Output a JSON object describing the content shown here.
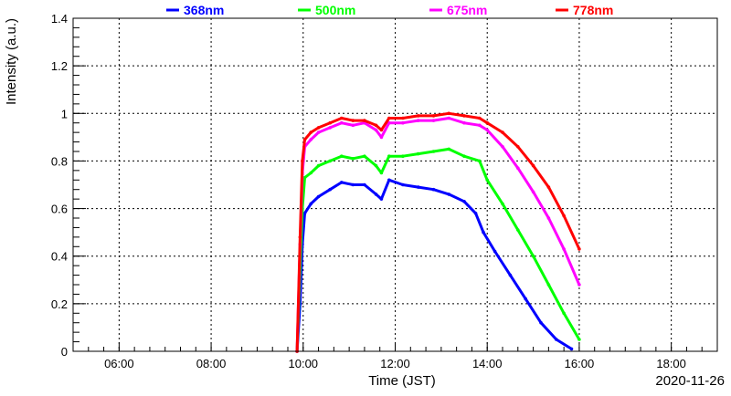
{
  "chart_data": {
    "type": "scatter",
    "title": "",
    "xlabel": "Time (JST)",
    "ylabel": "Intensity (a.u.)",
    "date_label": "2020-11-26",
    "xlim": [
      "05:00",
      "19:00"
    ],
    "ylim": [
      0,
      1.4
    ],
    "grid": true,
    "legend_position": "top",
    "x_ticks": [
      "06:00",
      "08:00",
      "10:00",
      "12:00",
      "14:00",
      "16:00",
      "18:00"
    ],
    "y_ticks": [
      "0",
      "0.2",
      "0.4",
      "0.6",
      "0.8",
      "1",
      "1.2",
      "1.4"
    ],
    "series": [
      {
        "name": "368nm",
        "color": "#0000ff",
        "points": [
          [
            "09:52",
            0.0
          ],
          [
            "09:56",
            0.2
          ],
          [
            "09:59",
            0.45
          ],
          [
            "10:02",
            0.58
          ],
          [
            "10:10",
            0.62
          ],
          [
            "10:20",
            0.65
          ],
          [
            "10:35",
            0.68
          ],
          [
            "10:50",
            0.71
          ],
          [
            "11:05",
            0.7
          ],
          [
            "11:20",
            0.7
          ],
          [
            "11:35",
            0.66
          ],
          [
            "11:42",
            0.64
          ],
          [
            "11:52",
            0.72
          ],
          [
            "12:10",
            0.7
          ],
          [
            "12:30",
            0.69
          ],
          [
            "12:50",
            0.68
          ],
          [
            "13:10",
            0.66
          ],
          [
            "13:30",
            0.63
          ],
          [
            "13:45",
            0.58
          ],
          [
            "13:55",
            0.5
          ],
          [
            "14:10",
            0.42
          ],
          [
            "14:30",
            0.32
          ],
          [
            "14:50",
            0.22
          ],
          [
            "15:10",
            0.12
          ],
          [
            "15:30",
            0.05
          ],
          [
            "15:50",
            0.01
          ]
        ]
      },
      {
        "name": "500nm",
        "color": "#00ff00",
        "points": [
          [
            "09:52",
            0.0
          ],
          [
            "09:56",
            0.35
          ],
          [
            "09:59",
            0.6
          ],
          [
            "10:02",
            0.73
          ],
          [
            "10:10",
            0.75
          ],
          [
            "10:20",
            0.78
          ],
          [
            "10:35",
            0.8
          ],
          [
            "10:50",
            0.82
          ],
          [
            "11:05",
            0.81
          ],
          [
            "11:20",
            0.82
          ],
          [
            "11:35",
            0.78
          ],
          [
            "11:42",
            0.75
          ],
          [
            "11:52",
            0.82
          ],
          [
            "12:10",
            0.82
          ],
          [
            "12:30",
            0.83
          ],
          [
            "12:50",
            0.84
          ],
          [
            "13:10",
            0.85
          ],
          [
            "13:30",
            0.82
          ],
          [
            "13:50",
            0.8
          ],
          [
            "14:00",
            0.72
          ],
          [
            "14:20",
            0.62
          ],
          [
            "14:40",
            0.51
          ],
          [
            "15:00",
            0.4
          ],
          [
            "15:20",
            0.28
          ],
          [
            "15:40",
            0.16
          ],
          [
            "16:00",
            0.05
          ]
        ]
      },
      {
        "name": "675nm",
        "color": "#ff00ff",
        "points": [
          [
            "09:52",
            0.0
          ],
          [
            "09:56",
            0.45
          ],
          [
            "09:59",
            0.75
          ],
          [
            "10:02",
            0.86
          ],
          [
            "10:10",
            0.89
          ],
          [
            "10:20",
            0.92
          ],
          [
            "10:35",
            0.94
          ],
          [
            "10:50",
            0.96
          ],
          [
            "11:05",
            0.95
          ],
          [
            "11:20",
            0.96
          ],
          [
            "11:35",
            0.93
          ],
          [
            "11:42",
            0.9
          ],
          [
            "11:52",
            0.96
          ],
          [
            "12:10",
            0.96
          ],
          [
            "12:30",
            0.97
          ],
          [
            "12:50",
            0.97
          ],
          [
            "13:10",
            0.98
          ],
          [
            "13:30",
            0.96
          ],
          [
            "13:50",
            0.95
          ],
          [
            "14:00",
            0.93
          ],
          [
            "14:20",
            0.86
          ],
          [
            "14:40",
            0.77
          ],
          [
            "15:00",
            0.67
          ],
          [
            "15:20",
            0.56
          ],
          [
            "15:40",
            0.43
          ],
          [
            "16:00",
            0.28
          ]
        ]
      },
      {
        "name": "778nm",
        "color": "#ff0000",
        "points": [
          [
            "09:52",
            0.0
          ],
          [
            "09:56",
            0.48
          ],
          [
            "09:59",
            0.8
          ],
          [
            "10:02",
            0.89
          ],
          [
            "10:10",
            0.92
          ],
          [
            "10:20",
            0.94
          ],
          [
            "10:35",
            0.96
          ],
          [
            "10:50",
            0.98
          ],
          [
            "11:05",
            0.97
          ],
          [
            "11:20",
            0.97
          ],
          [
            "11:35",
            0.95
          ],
          [
            "11:42",
            0.93
          ],
          [
            "11:52",
            0.98
          ],
          [
            "12:10",
            0.98
          ],
          [
            "12:30",
            0.99
          ],
          [
            "12:50",
            0.99
          ],
          [
            "13:10",
            1.0
          ],
          [
            "13:30",
            0.99
          ],
          [
            "13:50",
            0.98
          ],
          [
            "14:00",
            0.96
          ],
          [
            "14:20",
            0.92
          ],
          [
            "14:40",
            0.86
          ],
          [
            "15:00",
            0.78
          ],
          [
            "15:20",
            0.69
          ],
          [
            "15:40",
            0.57
          ],
          [
            "16:00",
            0.43
          ]
        ]
      }
    ]
  }
}
